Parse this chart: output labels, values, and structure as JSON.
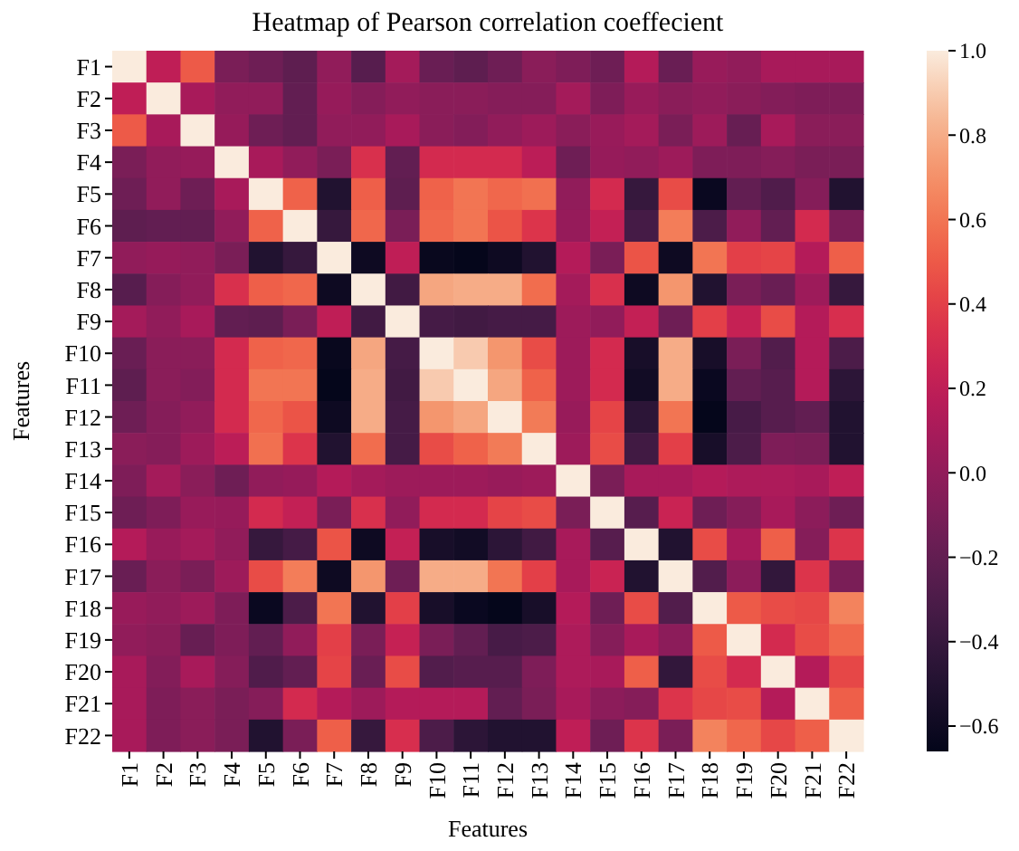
{
  "chart_data": {
    "type": "heatmap",
    "title": "Heatmap of Pearson correlation coeffecient",
    "xlabel": "Features",
    "ylabel": "Features",
    "categories": [
      "F1",
      "F2",
      "F3",
      "F4",
      "F5",
      "F6",
      "F7",
      "F8",
      "F9",
      "F10",
      "F11",
      "F12",
      "F13",
      "F14",
      "F15",
      "F16",
      "F17",
      "F18",
      "F19",
      "F20",
      "F21",
      "F22"
    ],
    "y_categories": [
      "F1",
      "F2",
      "F3",
      "F4",
      "F5",
      "F6",
      "F7",
      "F8",
      "F9",
      "F10",
      "F11",
      "F12",
      "F13",
      "F14",
      "F15",
      "F16",
      "F17",
      "F18",
      "F19",
      "F20",
      "F21",
      "F22"
    ],
    "clim": [
      -0.66,
      1.0
    ],
    "cticks": [
      {
        "value": 1.0,
        "label": "1.0"
      },
      {
        "value": 0.8,
        "label": "0.8"
      },
      {
        "value": 0.6,
        "label": "0.6"
      },
      {
        "value": 0.4,
        "label": "0.4"
      },
      {
        "value": 0.2,
        "label": "0.2"
      },
      {
        "value": 0.0,
        "label": "0.0"
      },
      {
        "value": -0.2,
        "label": "−0.2"
      },
      {
        "value": -0.4,
        "label": "−0.4"
      },
      {
        "value": -0.6,
        "label": "−0.6"
      }
    ],
    "cells": [
      [
        1,
        0.2,
        0.5,
        -0.1,
        -0.15,
        -0.22,
        0.0,
        -0.25,
        0.08,
        -0.17,
        -0.22,
        -0.15,
        -0.03,
        -0.08,
        -0.15,
        0.15,
        -0.17,
        0.03,
        0.0,
        0.1,
        0.1,
        0.1
      ],
      [
        0.2,
        1,
        0.1,
        0.0,
        0.0,
        -0.2,
        0.02,
        -0.05,
        0.0,
        -0.03,
        -0.03,
        -0.05,
        -0.05,
        0.08,
        -0.08,
        0.03,
        -0.03,
        0.0,
        -0.03,
        -0.06,
        -0.08,
        -0.08
      ],
      [
        0.5,
        0.1,
        1,
        0.02,
        -0.15,
        -0.2,
        0.0,
        0.0,
        0.1,
        -0.03,
        -0.06,
        0.0,
        0.05,
        -0.03,
        0.03,
        0.08,
        -0.1,
        0.05,
        -0.18,
        0.1,
        -0.03,
        -0.03
      ],
      [
        -0.1,
        0.0,
        0.02,
        1,
        0.1,
        0.0,
        -0.1,
        0.33,
        -0.2,
        0.3,
        0.3,
        0.3,
        0.18,
        -0.15,
        0.02,
        0.0,
        0.05,
        -0.08,
        -0.08,
        -0.05,
        -0.1,
        -0.1
      ],
      [
        -0.15,
        0.0,
        -0.15,
        0.1,
        1,
        0.53,
        -0.5,
        0.52,
        -0.22,
        0.53,
        0.6,
        0.55,
        0.58,
        0.0,
        0.3,
        -0.4,
        0.45,
        -0.62,
        -0.2,
        -0.28,
        -0.05,
        -0.5
      ],
      [
        -0.22,
        -0.2,
        -0.2,
        0.0,
        0.53,
        1,
        -0.4,
        0.55,
        -0.1,
        0.55,
        0.6,
        0.48,
        0.35,
        0.02,
        0.22,
        -0.33,
        0.63,
        -0.3,
        0.0,
        -0.2,
        0.3,
        -0.1
      ],
      [
        0.0,
        0.02,
        0.0,
        -0.1,
        -0.5,
        -0.4,
        1,
        -0.6,
        0.2,
        -0.63,
        -0.65,
        -0.6,
        -0.5,
        0.15,
        -0.1,
        0.48,
        -0.6,
        0.6,
        0.4,
        0.42,
        0.15,
        0.52
      ],
      [
        -0.25,
        -0.05,
        0.0,
        0.33,
        0.52,
        0.55,
        -0.6,
        1,
        -0.35,
        0.78,
        0.8,
        0.8,
        0.57,
        0.08,
        0.33,
        -0.6,
        0.72,
        -0.5,
        -0.1,
        -0.17,
        0.05,
        -0.4
      ],
      [
        0.08,
        0.0,
        0.1,
        -0.2,
        -0.22,
        -0.1,
        0.2,
        -0.35,
        1,
        -0.33,
        -0.35,
        -0.33,
        -0.33,
        0.05,
        0.0,
        0.22,
        -0.15,
        0.4,
        0.23,
        0.45,
        0.15,
        0.32
      ],
      [
        -0.17,
        -0.03,
        -0.03,
        0.3,
        0.53,
        0.55,
        -0.63,
        0.78,
        -0.33,
        1,
        0.9,
        0.72,
        0.45,
        0.05,
        0.3,
        -0.55,
        0.8,
        -0.55,
        -0.1,
        -0.27,
        0.15,
        -0.3
      ],
      [
        -0.22,
        -0.03,
        -0.06,
        0.3,
        0.6,
        0.6,
        -0.65,
        0.8,
        -0.35,
        0.9,
        1,
        0.78,
        0.53,
        0.05,
        0.3,
        -0.58,
        0.8,
        -0.62,
        -0.2,
        -0.25,
        0.15,
        -0.45
      ],
      [
        -0.15,
        -0.05,
        0.0,
        0.3,
        0.55,
        0.48,
        -0.6,
        0.8,
        -0.33,
        0.72,
        0.78,
        1,
        0.62,
        0.03,
        0.42,
        -0.45,
        0.6,
        -0.65,
        -0.32,
        -0.25,
        -0.2,
        -0.5
      ],
      [
        -0.03,
        -0.05,
        0.05,
        0.18,
        0.58,
        0.35,
        -0.5,
        0.57,
        -0.33,
        0.45,
        0.53,
        0.62,
        1,
        0.05,
        0.45,
        -0.35,
        0.4,
        -0.55,
        -0.3,
        -0.08,
        -0.1,
        -0.5
      ],
      [
        -0.08,
        0.08,
        -0.03,
        -0.15,
        0.0,
        0.02,
        0.15,
        0.08,
        0.05,
        0.05,
        0.05,
        0.03,
        0.05,
        1,
        -0.1,
        0.1,
        0.1,
        0.15,
        0.12,
        0.12,
        0.1,
        0.2
      ],
      [
        -0.15,
        -0.08,
        0.03,
        0.02,
        0.3,
        0.22,
        -0.1,
        0.33,
        0.0,
        0.3,
        0.3,
        0.42,
        0.45,
        -0.1,
        1,
        -0.25,
        0.25,
        -0.15,
        -0.05,
        0.1,
        -0.02,
        -0.15
      ],
      [
        0.15,
        0.03,
        0.08,
        0.0,
        -0.4,
        -0.33,
        0.48,
        -0.6,
        0.22,
        -0.55,
        -0.58,
        -0.45,
        -0.35,
        0.1,
        -0.25,
        1,
        -0.5,
        0.45,
        0.1,
        0.52,
        -0.05,
        0.35
      ],
      [
        -0.17,
        -0.03,
        -0.1,
        0.05,
        0.45,
        0.63,
        -0.6,
        0.72,
        -0.15,
        0.8,
        0.8,
        0.6,
        0.4,
        0.1,
        0.25,
        -0.5,
        1,
        -0.27,
        -0.02,
        -0.42,
        0.35,
        -0.1
      ],
      [
        0.03,
        0.0,
        0.05,
        -0.08,
        -0.62,
        -0.3,
        0.6,
        -0.5,
        0.4,
        -0.55,
        -0.62,
        -0.65,
        -0.55,
        0.15,
        -0.15,
        0.45,
        -0.27,
        1,
        0.5,
        0.45,
        0.43,
        0.65
      ],
      [
        0.0,
        -0.03,
        -0.18,
        -0.08,
        -0.2,
        0.0,
        0.4,
        -0.1,
        0.23,
        -0.1,
        -0.2,
        -0.32,
        -0.3,
        0.12,
        -0.05,
        0.1,
        -0.02,
        0.5,
        1,
        0.3,
        0.45,
        0.55
      ],
      [
        0.1,
        -0.06,
        0.1,
        -0.05,
        -0.28,
        -0.2,
        0.42,
        -0.17,
        0.45,
        -0.27,
        -0.25,
        -0.25,
        -0.08,
        0.12,
        0.1,
        0.52,
        -0.42,
        0.45,
        0.3,
        1,
        0.15,
        0.43
      ],
      [
        0.1,
        -0.08,
        -0.03,
        -0.1,
        -0.05,
        0.3,
        0.15,
        0.05,
        0.15,
        0.15,
        0.15,
        -0.2,
        -0.1,
        0.1,
        -0.02,
        -0.05,
        0.35,
        0.43,
        0.45,
        0.15,
        1,
        0.52
      ],
      [
        0.1,
        -0.08,
        -0.03,
        -0.1,
        -0.5,
        -0.1,
        0.52,
        -0.4,
        0.32,
        -0.3,
        -0.45,
        -0.5,
        -0.5,
        0.2,
        -0.15,
        0.35,
        -0.1,
        0.65,
        0.55,
        0.43,
        0.52,
        1
      ]
    ]
  }
}
